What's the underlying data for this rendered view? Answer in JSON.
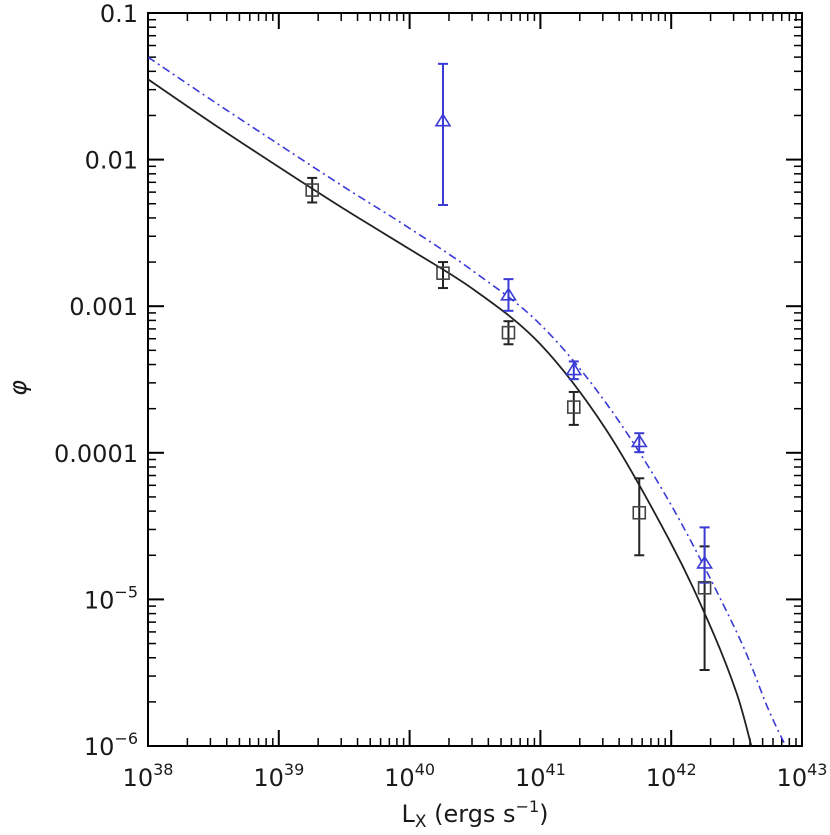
{
  "chart_data": {
    "type": "scatter",
    "xlabel": "L_X (ergs s^-1)",
    "ylabel": "φ",
    "xscale": "log",
    "yscale": "log",
    "xlim": [
      1e+38,
      1e+43
    ],
    "ylim": [
      1e-06,
      0.1
    ],
    "grid": false,
    "x_ticks": [
      {
        "value": 1e+38,
        "base": "10",
        "exp": "38"
      },
      {
        "value": 1e+39,
        "base": "10",
        "exp": "39"
      },
      {
        "value": 1e+40,
        "base": "10",
        "exp": "40"
      },
      {
        "value": 1e+41,
        "base": "10",
        "exp": "41"
      },
      {
        "value": 1e+42,
        "base": "10",
        "exp": "42"
      },
      {
        "value": 1e+43,
        "base": "10",
        "exp": "43"
      }
    ],
    "y_ticks": [
      {
        "value": 0.1,
        "text": "0.1"
      },
      {
        "value": 0.01,
        "text": "0.01"
      },
      {
        "value": 0.001,
        "text": "0.001"
      },
      {
        "value": 0.0001,
        "text": "0.0001"
      },
      {
        "value": 1e-05,
        "base": "10",
        "exp": "−5"
      },
      {
        "value": 1e-06,
        "base": "10",
        "exp": "−6"
      }
    ],
    "series": [
      {
        "marker": "square",
        "color": "#222222",
        "points": [
          {
            "x": 1.8e+39,
            "y": 0.0062,
            "ylo": 0.0051,
            "yhi": 0.0075
          },
          {
            "x": 1.8e+40,
            "y": 0.00168,
            "ylo": 0.00133,
            "yhi": 0.002
          },
          {
            "x": 5.7e+40,
            "y": 0.00066,
            "ylo": 0.00055,
            "yhi": 0.00079
          },
          {
            "x": 1.8e+41,
            "y": 0.000205,
            "ylo": 0.000155,
            "yhi": 0.00026
          },
          {
            "x": 5.7e+41,
            "y": 3.9e-05,
            "ylo": 2e-05,
            "yhi": 6.7e-05
          },
          {
            "x": 1.8e+42,
            "y": 1.2e-05,
            "ylo": 3.3e-06,
            "yhi": 2.3e-05
          }
        ],
        "curve": [
          [
            1e+38,
            0.0353
          ],
          [
            3.16e+38,
            0.0175
          ],
          [
            1e+39,
            0.0089
          ],
          [
            3.16e+39,
            0.0046
          ],
          [
            1e+40,
            0.00245
          ],
          [
            3.16e+40,
            0.00128
          ],
          [
            1e+41,
            0.00055
          ],
          [
            3.16e+41,
            0.000145
          ],
          [
            1e+42,
            2.4e-05
          ],
          [
            2e+42,
            6.5e-06
          ],
          [
            3.16e+42,
            2.3e-06
          ],
          [
            4.1e+42,
            1e-06
          ]
        ]
      },
      {
        "marker": "triangle",
        "color": "#3a3ad6",
        "points": [
          {
            "x": 1.8e+40,
            "y": 0.0182,
            "ylo": 0.0049,
            "yhi": 0.045
          },
          {
            "x": 5.7e+40,
            "y": 0.00118,
            "ylo": 0.00093,
            "yhi": 0.00153
          },
          {
            "x": 1.8e+41,
            "y": 0.000365,
            "ylo": 0.000318,
            "yhi": 0.00042
          },
          {
            "x": 5.7e+41,
            "y": 0.000118,
            "ylo": 0.000101,
            "yhi": 0.000136
          },
          {
            "x": 1.8e+42,
            "y": 1.75e-05,
            "ylo": 1.3e-05,
            "yhi": 3.1e-05
          }
        ],
        "curve": [
          [
            1e+38,
            0.05
          ],
          [
            3.16e+38,
            0.025
          ],
          [
            1e+39,
            0.0127
          ],
          [
            3.16e+39,
            0.0065
          ],
          [
            1e+40,
            0.0034
          ],
          [
            3.16e+40,
            0.0017
          ],
          [
            1e+41,
            0.00075
          ],
          [
            3.16e+41,
            0.00022
          ],
          [
            1e+42,
            4.4e-05
          ],
          [
            3.16e+42,
            6e-06
          ],
          [
            5.5e+42,
            1.8e-06
          ],
          [
            7.5e+42,
            1e-06
          ]
        ]
      }
    ]
  }
}
